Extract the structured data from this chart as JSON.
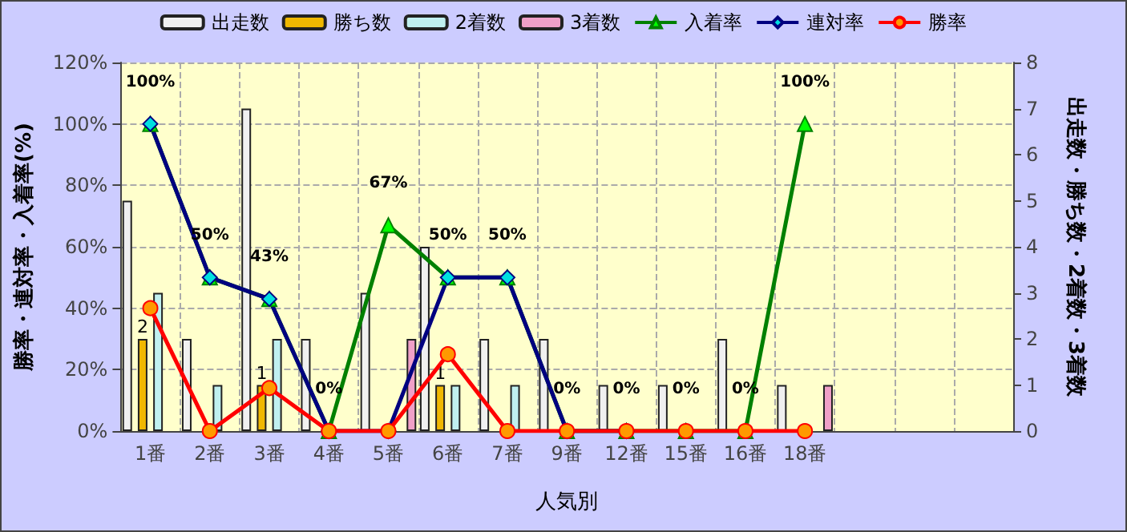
{
  "chart_data": {
    "type": "bar",
    "xlabel": "人気別",
    "ylabel": "勝率・連対率・入着率(%)",
    "y2label": "出走数・勝ち数・2着数・3着数",
    "categories": [
      "1番",
      "2番",
      "3番",
      "4番",
      "5番",
      "6番",
      "7番",
      "9番",
      "12番",
      "15番",
      "16番",
      "18番",
      null,
      null,
      null
    ],
    "series": [
      {
        "name": "出走数",
        "axis": "y2",
        "color": "#f0f0f0",
        "values": [
          5,
          2,
          7,
          2,
          3,
          4,
          2,
          2,
          1,
          1,
          2,
          1,
          null,
          null,
          null
        ]
      },
      {
        "name": "勝ち数",
        "axis": "y2",
        "color": "#f0b800",
        "values": [
          2,
          null,
          1,
          null,
          null,
          1,
          null,
          null,
          null,
          null,
          null,
          null,
          null,
          null,
          null
        ],
        "value_labels": [
          "2",
          null,
          "1",
          null,
          null,
          "1",
          null,
          null,
          null,
          null,
          null,
          null,
          null,
          null,
          null
        ]
      },
      {
        "name": "2着数",
        "axis": "y2",
        "color": "#c0f0f0",
        "values": [
          3,
          1,
          2,
          null,
          null,
          1,
          1,
          null,
          null,
          null,
          null,
          null,
          null,
          null,
          null
        ]
      },
      {
        "name": "3着数",
        "axis": "y2",
        "color": "#f0a0c8",
        "values": [
          null,
          null,
          null,
          null,
          2,
          null,
          null,
          null,
          null,
          null,
          null,
          1,
          null,
          null,
          null
        ]
      },
      {
        "name": "入着率",
        "type": "line",
        "color": "#008000",
        "marker": "triangle",
        "values": [
          100,
          50,
          43,
          0,
          67,
          50,
          50,
          0,
          0,
          0,
          0,
          100,
          null,
          null,
          null
        ],
        "value_labels": [
          "100%",
          "50%",
          "43%",
          "0%",
          "67%",
          "50%",
          "50%",
          "0%",
          "0%",
          "0%",
          "0%",
          "100%",
          null,
          null,
          null
        ]
      },
      {
        "name": "連対率",
        "type": "line",
        "color": "#000080",
        "marker": "diamond",
        "values": [
          100,
          50,
          43,
          0,
          0,
          50,
          50,
          0,
          0,
          null,
          null,
          null,
          null,
          null,
          null
        ]
      },
      {
        "name": "勝率",
        "type": "line",
        "color": "#ff0000",
        "marker": "circle",
        "values": [
          40,
          0,
          14,
          0,
          0,
          25,
          0,
          0,
          0,
          0,
          0,
          0,
          null,
          null,
          null
        ]
      }
    ],
    "ylim": [
      0,
      120
    ],
    "yticks": [
      {
        "value": 0,
        "label": "0%"
      },
      {
        "value": 20,
        "label": "20%"
      },
      {
        "value": 40,
        "label": "40%"
      },
      {
        "value": 60,
        "label": "60%"
      },
      {
        "value": 80,
        "label": "80%"
      },
      {
        "value": 100,
        "label": "100%"
      },
      {
        "value": 120,
        "label": "120%"
      }
    ],
    "y2lim": [
      0,
      8
    ],
    "y2ticks": [
      0,
      1,
      2,
      3,
      4,
      5,
      6,
      7,
      8
    ],
    "grid": true,
    "legend": "top",
    "line_style": "solid"
  }
}
